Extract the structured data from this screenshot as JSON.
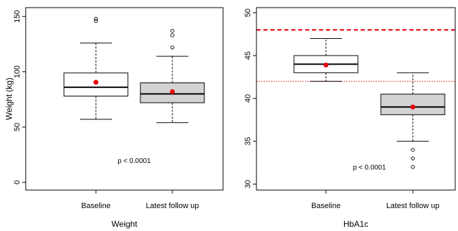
{
  "chart_data": [
    {
      "type": "box",
      "title": "",
      "xlabel": "Weight",
      "ylabel": "Weight (kg)",
      "ylim": [
        -7,
        158
      ],
      "yticks": [
        0,
        50,
        100,
        150
      ],
      "categories": [
        "Baseline",
        "Latest follow up"
      ],
      "fills": [
        "#ffffff",
        "#d3d3d3"
      ],
      "boxes": [
        {
          "min": 57,
          "q1": 78,
          "median": 86,
          "q3": 99,
          "max": 126,
          "mean": 90.5,
          "outliers": [
            146,
            148
          ]
        },
        {
          "min": 54,
          "q1": 72,
          "median": 80,
          "q3": 90,
          "max": 114,
          "mean": 82,
          "outliers": [
            122,
            133,
            137
          ]
        }
      ],
      "annotation": {
        "text": "p < 0.0001",
        "x": 1.5,
        "y": 20
      },
      "reference_lines": []
    },
    {
      "type": "box",
      "title": "",
      "xlabel": "HbA1c",
      "ylabel": "",
      "ylim": [
        29.3,
        50.6
      ],
      "yticks": [
        30,
        35,
        40,
        45,
        50
      ],
      "categories": [
        "Baseline",
        "Latest follow up"
      ],
      "fills": [
        "#ffffff",
        "#d3d3d3"
      ],
      "boxes": [
        {
          "min": 42,
          "q1": 43,
          "median": 44,
          "q3": 45,
          "max": 47,
          "mean": 43.9,
          "outliers": []
        },
        {
          "min": 35,
          "q1": 38.1,
          "median": 39,
          "q3": 40.5,
          "max": 43,
          "mean": 39,
          "outliers": [
            32,
            33,
            34
          ]
        }
      ],
      "annotation": {
        "text": "p < 0.0001",
        "x": 1.5,
        "y": 32
      },
      "reference_lines": [
        {
          "y": 48,
          "style": "dashed",
          "color": "#e8000b"
        },
        {
          "y": 42,
          "style": "dotted",
          "color": "#e8000b"
        }
      ]
    }
  ],
  "colors": {
    "mean_point": "#e8000b"
  }
}
